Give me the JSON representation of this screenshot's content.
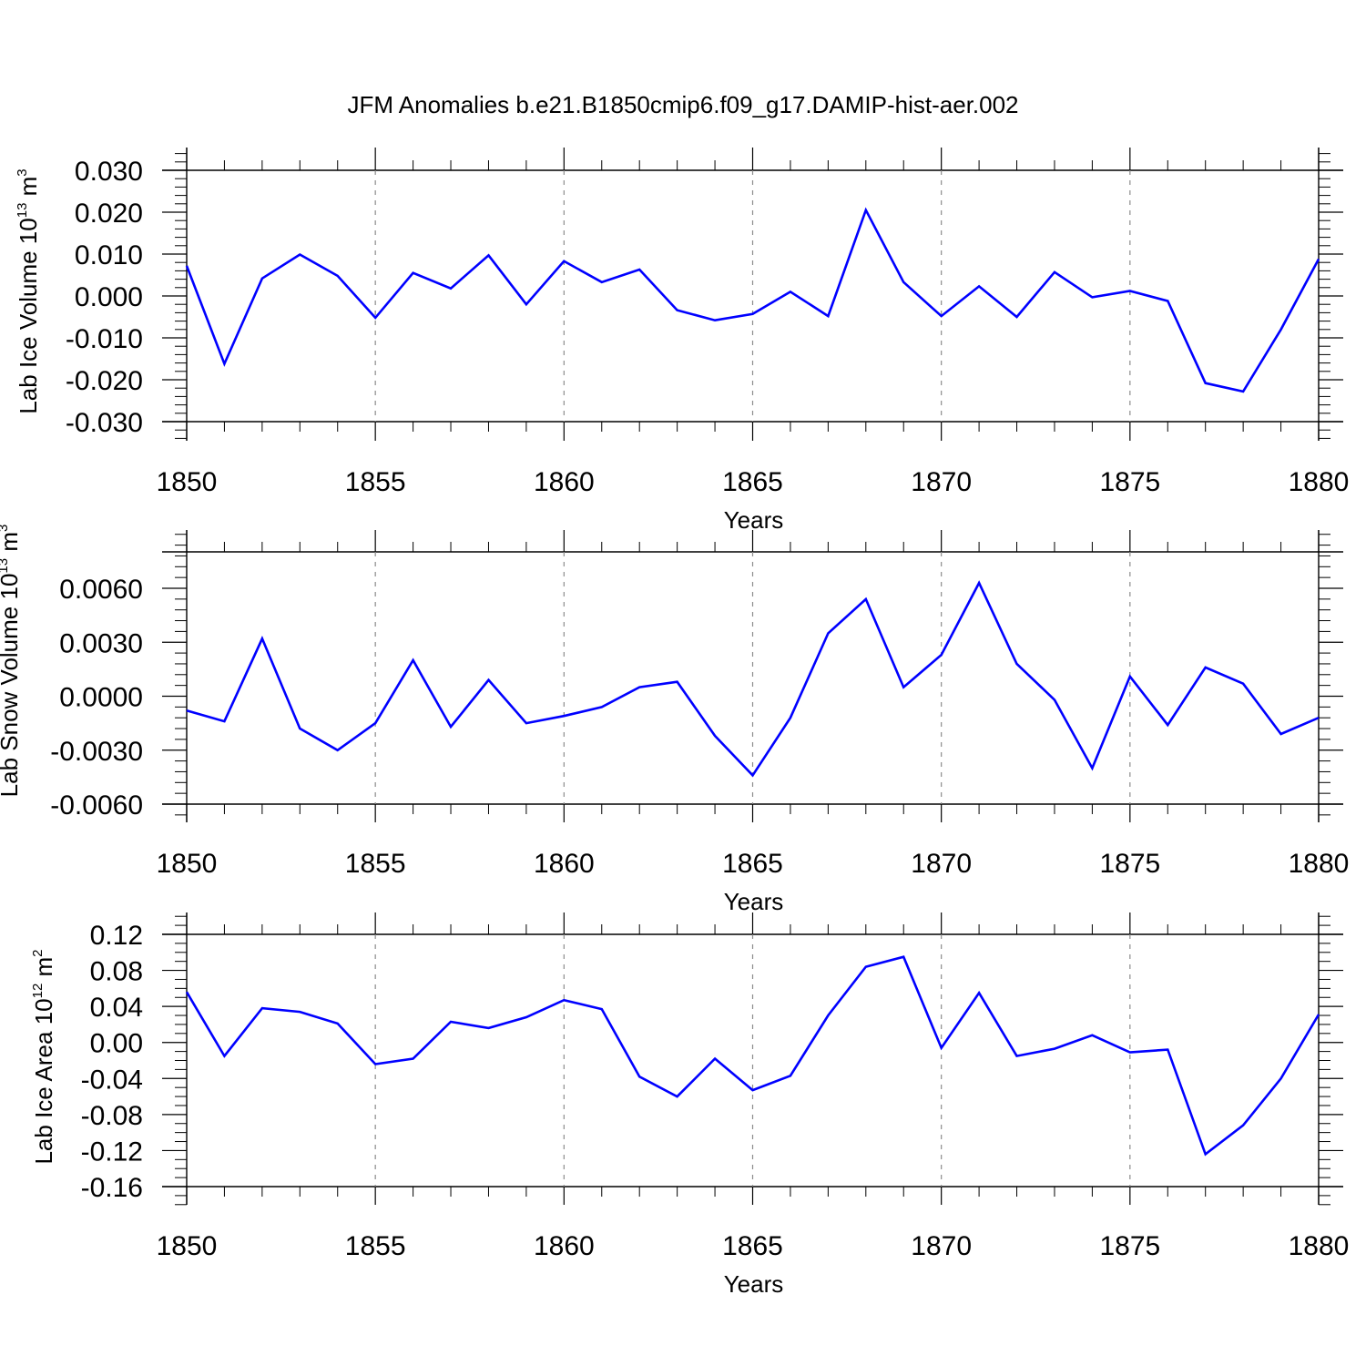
{
  "title": "JFM Anomalies b.e21.B1850cmip6.f09_g17.DAMIP-hist-aer.002",
  "colors": {
    "series": "#0000ff",
    "axis": "#000000",
    "grid": "#8c8c8c"
  },
  "chart_data": [
    {
      "type": "line",
      "title": "",
      "xlabel": "Years",
      "ylabel": {
        "prefix": "Lab Ice Volume 10",
        "exponent": "13",
        "unit": " m",
        "unit_exponent": "3"
      },
      "xlim": [
        1850,
        1880
      ],
      "ylim": [
        -0.03,
        0.03
      ],
      "x_ticks": [
        "1850",
        "1855",
        "1860",
        "1865",
        "1870",
        "1875",
        "1880"
      ],
      "y_ticks": [
        "0.030",
        "0.020",
        "0.010",
        "0.000",
        "-0.010",
        "-0.020",
        "-0.030"
      ],
      "y_tick_values": [
        0.03,
        0.02,
        0.01,
        0.0,
        -0.01,
        -0.02,
        -0.03
      ],
      "grid": "dashed vertical at major x ticks",
      "x": [
        1850,
        1851,
        1852,
        1853,
        1854,
        1855,
        1856,
        1857,
        1858,
        1859,
        1860,
        1861,
        1862,
        1863,
        1864,
        1865,
        1866,
        1867,
        1868,
        1869,
        1870,
        1871,
        1872,
        1873,
        1874,
        1875,
        1876,
        1877,
        1878,
        1879,
        1880
      ],
      "values": [
        0.0072,
        -0.0162,
        0.0042,
        0.0099,
        0.0048,
        -0.0052,
        0.0055,
        0.0018,
        0.0097,
        -0.002,
        0.0083,
        0.0033,
        0.0063,
        -0.0034,
        -0.0058,
        -0.0043,
        0.001,
        -0.0048,
        0.0205,
        0.0033,
        -0.0048,
        0.0023,
        -0.005,
        0.0057,
        -0.0003,
        0.0012,
        -0.0012,
        -0.0208,
        -0.0228,
        -0.008,
        0.0088
      ]
    },
    {
      "type": "line",
      "title": "",
      "xlabel": "Years",
      "ylabel": {
        "prefix": "Lab Snow Volume 10",
        "exponent": "13",
        "unit": " m",
        "unit_exponent": "3"
      },
      "xlim": [
        1850,
        1880
      ],
      "ylim": [
        -0.006,
        0.008
      ],
      "x_ticks": [
        "1850",
        "1855",
        "1860",
        "1865",
        "1870",
        "1875",
        "1880"
      ],
      "y_ticks": [
        "0.0060",
        "0.0030",
        "0.0000",
        "-0.0030",
        "-0.0060"
      ],
      "y_tick_values": [
        0.006,
        0.003,
        0.0,
        -0.003,
        -0.006
      ],
      "grid": "dashed vertical at major x ticks",
      "x": [
        1850,
        1851,
        1852,
        1853,
        1854,
        1855,
        1856,
        1857,
        1858,
        1859,
        1860,
        1861,
        1862,
        1863,
        1864,
        1865,
        1866,
        1867,
        1868,
        1869,
        1870,
        1871,
        1872,
        1873,
        1874,
        1875,
        1876,
        1877,
        1878,
        1879,
        1880
      ],
      "values": [
        -0.0008,
        -0.0014,
        0.0032,
        -0.0018,
        -0.003,
        -0.0015,
        0.002,
        -0.0017,
        0.0009,
        -0.0015,
        -0.0011,
        -0.0006,
        0.0005,
        0.0008,
        -0.0022,
        -0.0044,
        -0.0012,
        0.0035,
        0.0054,
        0.0005,
        0.0023,
        0.0063,
        0.0018,
        -0.0002,
        -0.004,
        0.0011,
        -0.0016,
        0.0016,
        0.0007,
        -0.0021,
        -0.0012
      ]
    },
    {
      "type": "line",
      "title": "",
      "xlabel": "Years",
      "ylabel": {
        "prefix": "Lab Ice Area 10",
        "exponent": "12",
        "unit": " m",
        "unit_exponent": "2"
      },
      "xlim": [
        1850,
        1880
      ],
      "ylim": [
        -0.16,
        0.12
      ],
      "x_ticks": [
        "1850",
        "1855",
        "1860",
        "1865",
        "1870",
        "1875",
        "1880"
      ],
      "y_ticks": [
        "0.12",
        "0.08",
        "0.04",
        "0.00",
        "-0.04",
        "-0.08",
        "-0.12",
        "-0.16"
      ],
      "y_tick_values": [
        0.12,
        0.08,
        0.04,
        0.0,
        -0.04,
        -0.08,
        -0.12,
        -0.16
      ],
      "grid": "dashed vertical at major x ticks",
      "x": [
        1850,
        1851,
        1852,
        1853,
        1854,
        1855,
        1856,
        1857,
        1858,
        1859,
        1860,
        1861,
        1862,
        1863,
        1864,
        1865,
        1866,
        1867,
        1868,
        1869,
        1870,
        1871,
        1872,
        1873,
        1874,
        1875,
        1876,
        1877,
        1878,
        1879,
        1880
      ],
      "values": [
        0.056,
        -0.015,
        0.038,
        0.034,
        0.021,
        -0.024,
        -0.018,
        0.023,
        0.016,
        0.028,
        0.047,
        0.037,
        -0.038,
        -0.06,
        -0.018,
        -0.053,
        -0.037,
        0.03,
        0.084,
        0.095,
        -0.006,
        0.055,
        -0.015,
        -0.007,
        0.008,
        -0.011,
        -0.008,
        -0.124,
        -0.092,
        -0.04,
        0.031
      ]
    }
  ]
}
